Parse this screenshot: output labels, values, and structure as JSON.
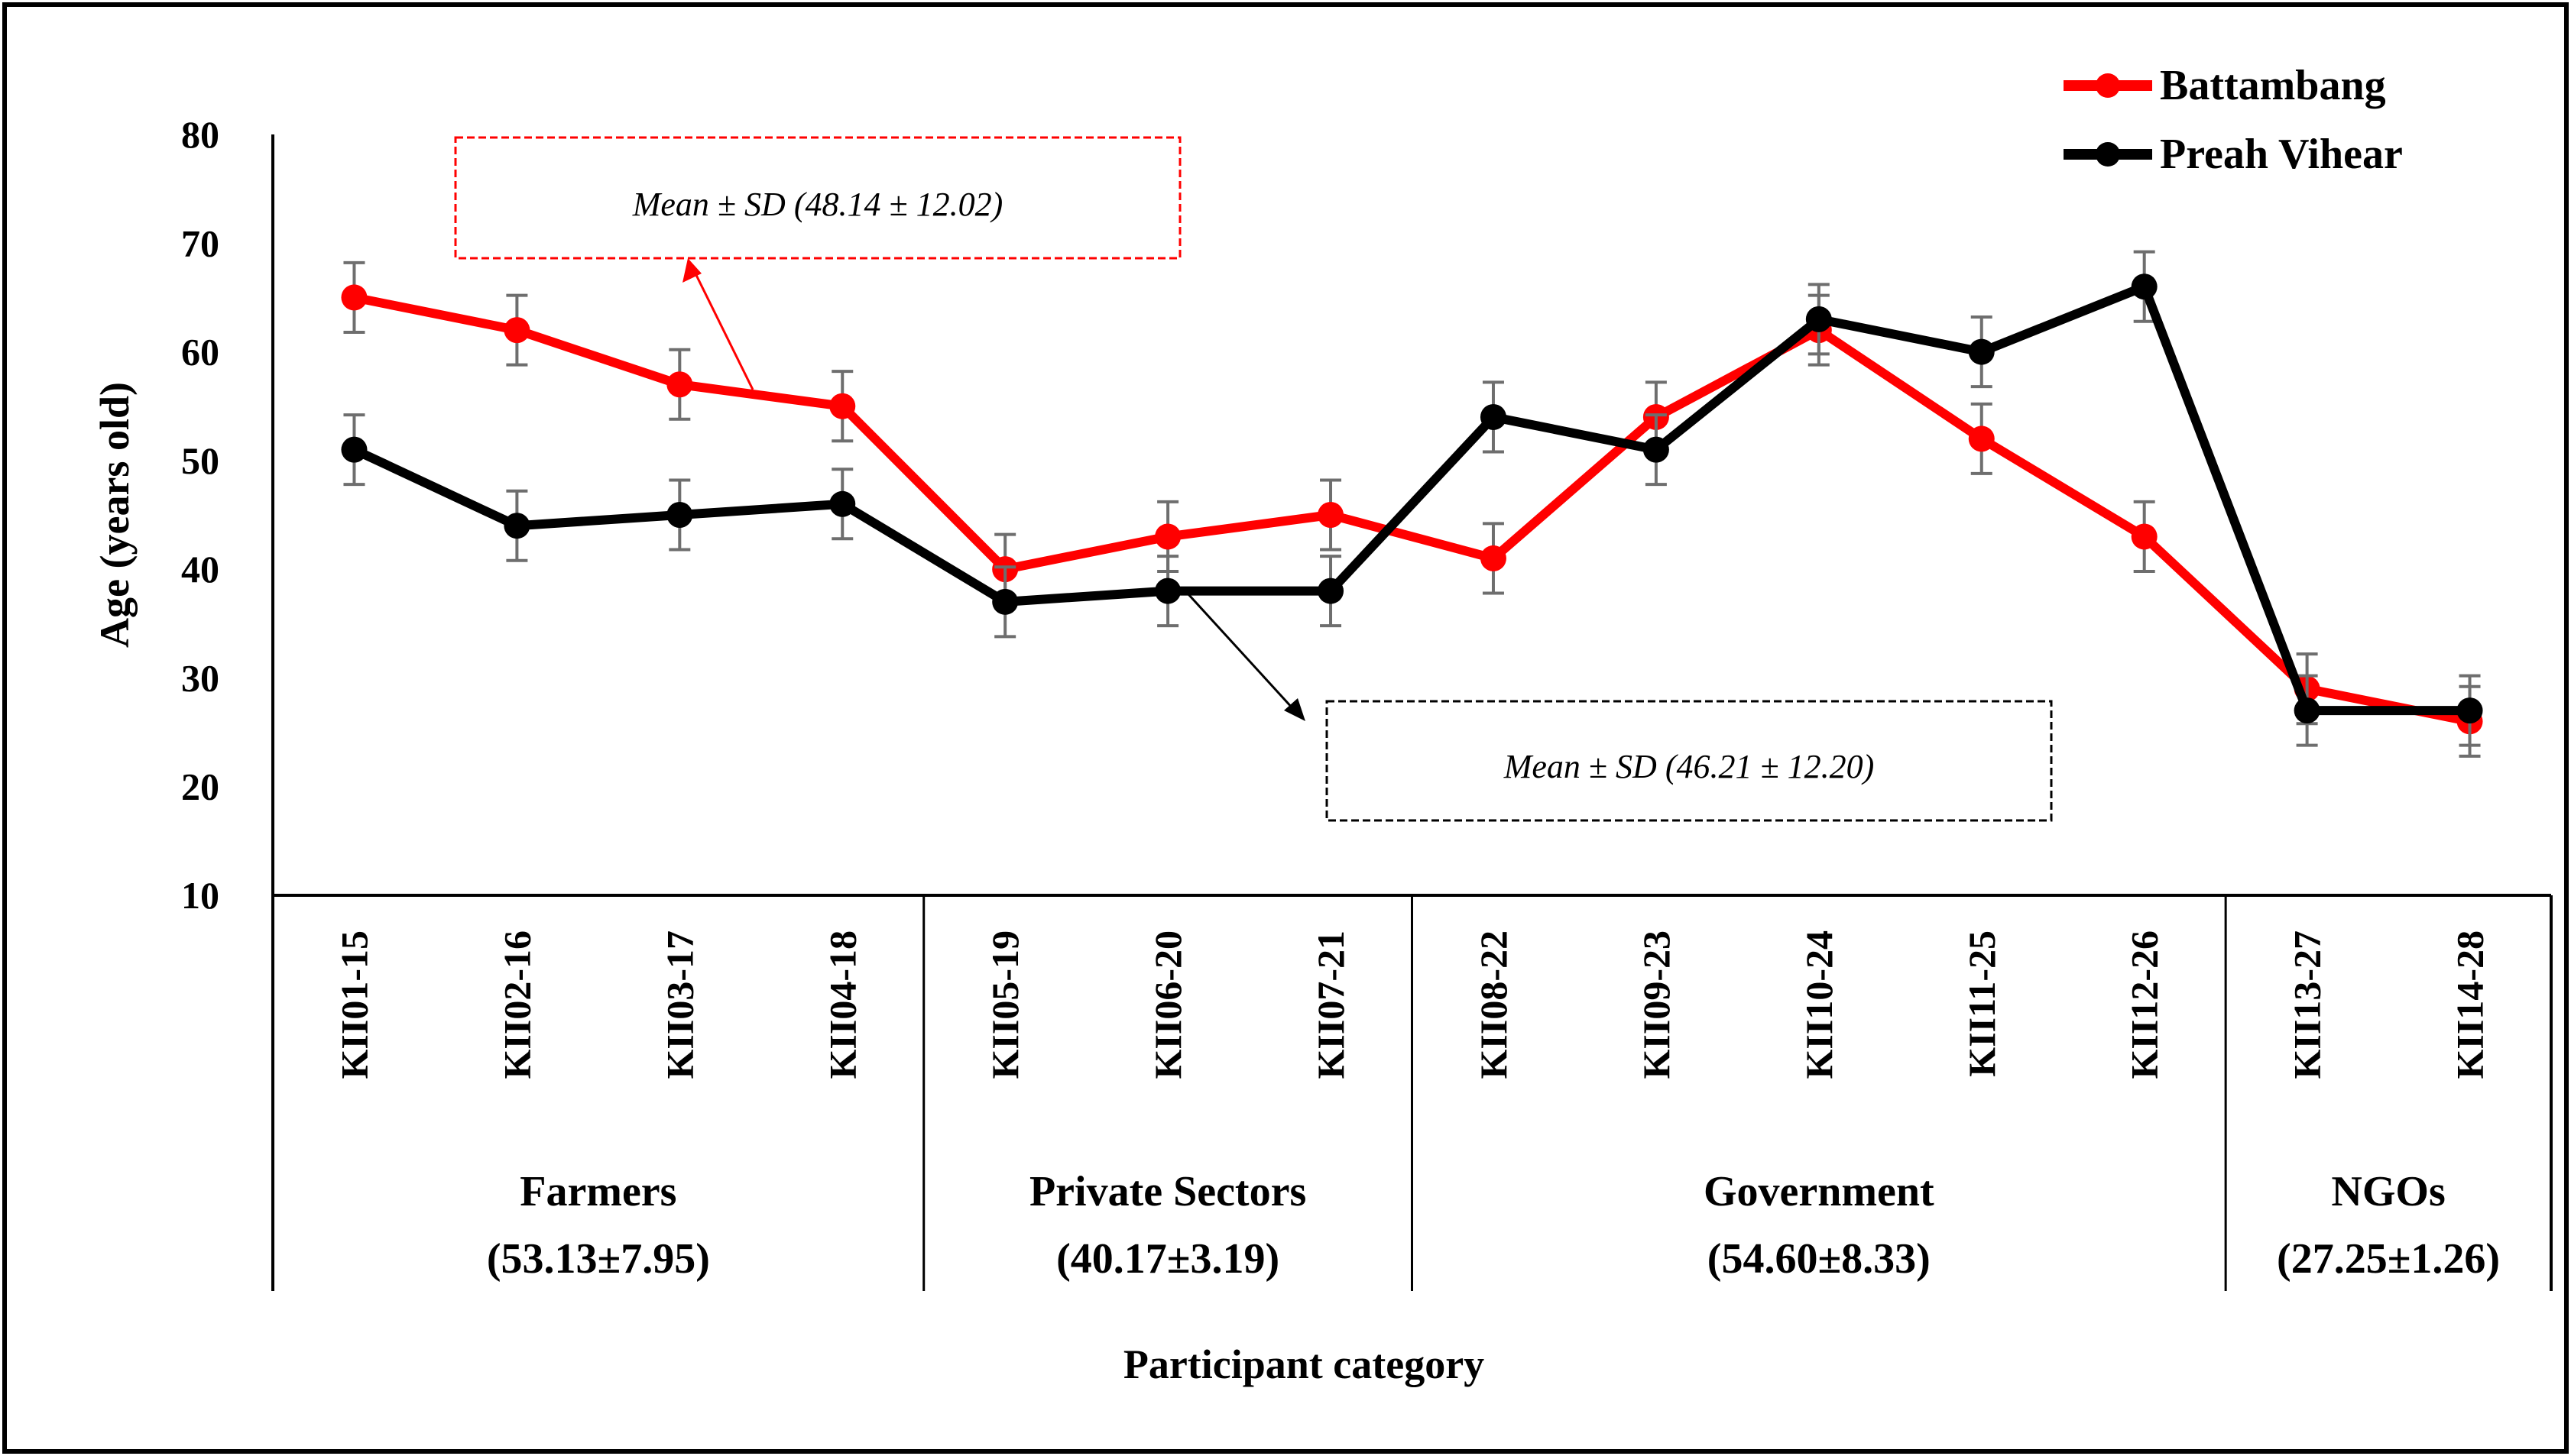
{
  "chart_data": {
    "type": "line",
    "title": "",
    "xlabel": "Participant category",
    "ylabel": "Age (years old)",
    "ylim": [
      10,
      80
    ],
    "yticks": [
      10,
      20,
      30,
      40,
      50,
      60,
      70,
      80
    ],
    "grid": false,
    "legend_position": "top-right",
    "categories": [
      "KII01-15",
      "KII02-16",
      "KII03-17",
      "KII04-18",
      "KII05-19",
      "KII06-20",
      "KII07-21",
      "KII08-22",
      "KII09-23",
      "KII10-24",
      "KII11-25",
      "KII12-26",
      "KII13-27",
      "KII14-28"
    ],
    "groups": [
      {
        "name": "Farmers",
        "stat": "(53.13±7.95)",
        "start": 0,
        "end": 3
      },
      {
        "name": "Private Sectors",
        "stat": "(40.17±3.19)",
        "start": 4,
        "end": 6
      },
      {
        "name": "Government",
        "stat": "(54.60±8.33)",
        "start": 7,
        "end": 11
      },
      {
        "name": "NGOs",
        "stat": "(27.25±1.26)",
        "start": 12,
        "end": 13
      }
    ],
    "series": [
      {
        "name": "Battambang",
        "color": "#ff0000",
        "values": [
          65,
          62,
          57,
          55,
          40,
          43,
          45,
          41,
          54,
          62,
          52,
          43,
          29,
          26
        ],
        "error": 3.2
      },
      {
        "name": "Preah Vihear",
        "color": "#000000",
        "values": [
          51,
          44,
          45,
          46,
          37,
          38,
          38,
          54,
          51,
          63,
          60,
          66,
          27,
          27
        ],
        "error": 3.2
      }
    ],
    "annotations": [
      {
        "series": "Battambang",
        "text": "Mean ± SD (48.14  ± 12.02)",
        "color": "#ff0000"
      },
      {
        "series": "Preah Vihear",
        "text": "Mean ± SD (46.21 ± 12.20)",
        "color": "#000000"
      }
    ]
  }
}
